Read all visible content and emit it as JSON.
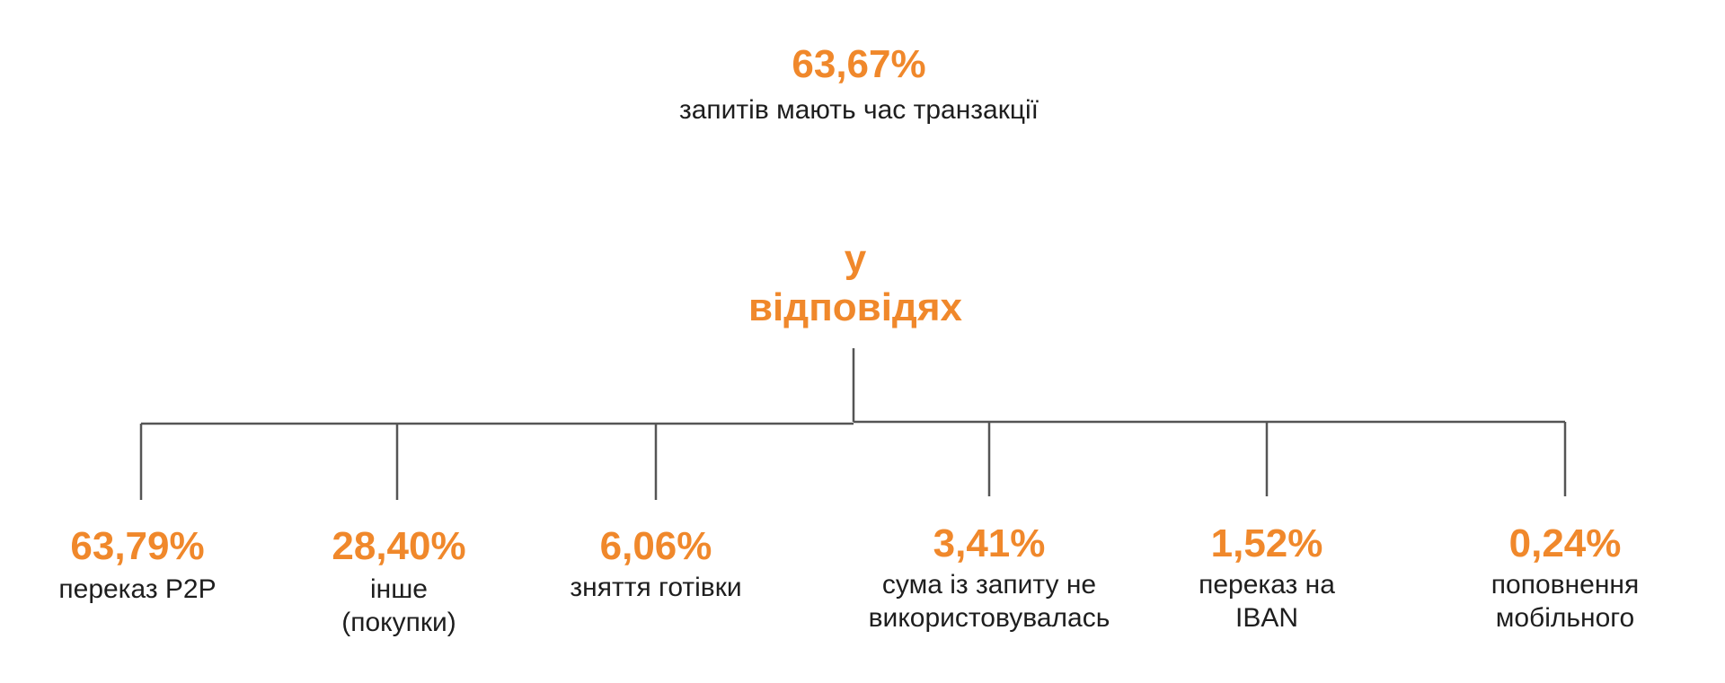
{
  "colors": {
    "accent": "#f0882b",
    "text": "#1e1e1e",
    "line": "#555555"
  },
  "header": {
    "percent": "63,67%",
    "description": "запитів мають час транзакції"
  },
  "center": {
    "label": "у\nвідповідях"
  },
  "branches": [
    {
      "percent": "63,79%",
      "description": "переказ P2P"
    },
    {
      "percent": "28,40%",
      "description": "інше\n(покупки)"
    },
    {
      "percent": "6,06%",
      "description": "зняття готівки"
    },
    {
      "percent": "3,41%",
      "description": "сума із запиту не\nвикористовувалась"
    },
    {
      "percent": "1,52%",
      "description": "переказ на\nIBAN"
    },
    {
      "percent": "0,24%",
      "description": "поповнення\nмобільного"
    }
  ]
}
